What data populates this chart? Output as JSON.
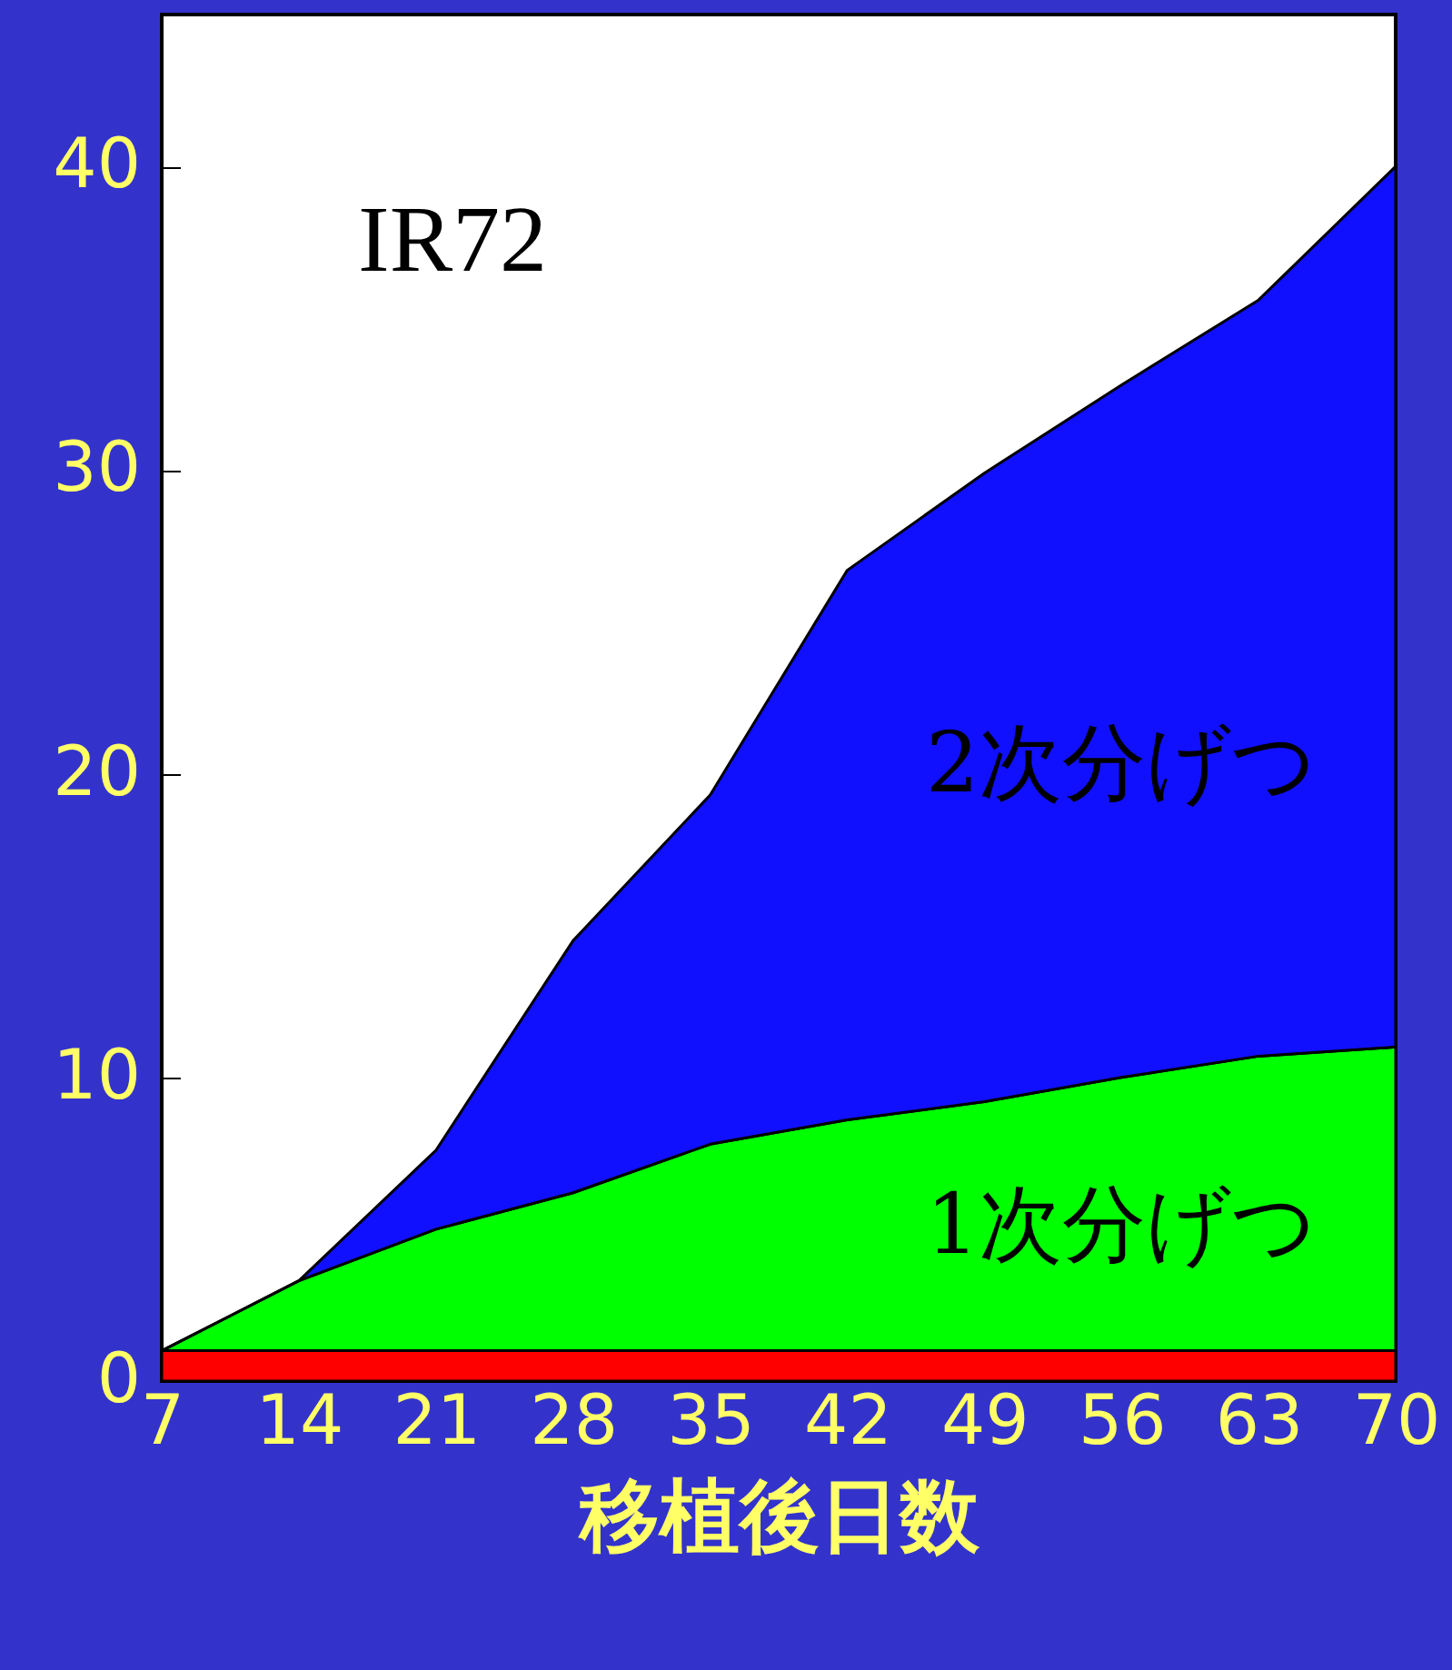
{
  "chart_data": {
    "type": "area",
    "stacked": true,
    "xlabel": "移植後日数",
    "annotations": [
      "IR72"
    ],
    "x": [
      7,
      14,
      21,
      28,
      35,
      42,
      49,
      56,
      63,
      70
    ],
    "series": [
      {
        "color": "#ff0000",
        "values": [
          1,
          1,
          1,
          1,
          1,
          1,
          1,
          1,
          1,
          1
        ]
      },
      {
        "name": "1次分げつ",
        "color": "#00ff00",
        "values": [
          0,
          2.3,
          4.0,
          5.2,
          6.8,
          7.6,
          8.2,
          9.0,
          9.7,
          10.0
        ]
      },
      {
        "name": "2次分げつ",
        "color": "#1010ff",
        "values": [
          0,
          0,
          2.6,
          8.3,
          11.5,
          18.1,
          20.7,
          22.8,
          24.9,
          29.0
        ]
      }
    ],
    "xlim": [
      7,
      70
    ],
    "xticks": [
      7,
      14,
      21,
      28,
      35,
      42,
      49,
      56,
      63,
      70
    ],
    "ylim": [
      0,
      45
    ],
    "yticks": [
      0,
      10,
      20,
      30,
      40
    ]
  }
}
